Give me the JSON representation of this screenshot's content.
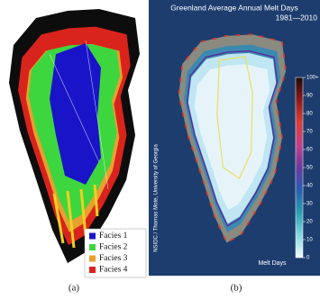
{
  "panels": {
    "a": {
      "caption": "(a)",
      "legend": [
        {
          "label": "Facies 1",
          "color": "#1a14c8"
        },
        {
          "label": "Facies 2",
          "color": "#3ed63e"
        },
        {
          "label": "Facies 3",
          "color": "#e8a030"
        },
        {
          "label": "Facies 4",
          "color": "#d8241c"
        }
      ]
    },
    "b": {
      "caption": "(b)",
      "title": "Greenland Average Annual Melt Days",
      "subtitle": "1981—2010",
      "credit": "NSIDC / Thomas Mote, University of Georgia",
      "colorbar_label": "Melt Days",
      "colorbar_ticks": [
        {
          "value": 100,
          "label": "100+"
        },
        90,
        80,
        70,
        60,
        50,
        40,
        30,
        20,
        10,
        0
      ]
    }
  }
}
